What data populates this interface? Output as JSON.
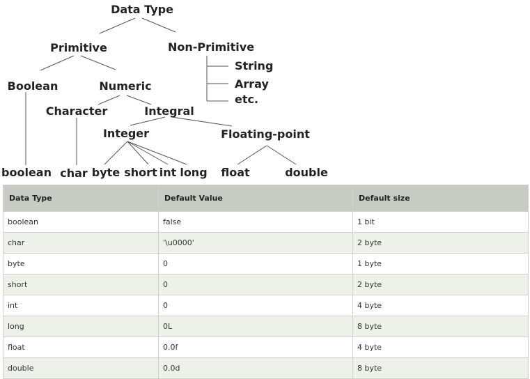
{
  "tree": {
    "root": "Data Type",
    "primitive": "Primitive",
    "non_primitive": "Non-Primitive",
    "non_primitive_items": [
      "String",
      "Array",
      "etc."
    ],
    "boolean_group": "Boolean",
    "numeric_group": "Numeric",
    "character_group": "Character",
    "integral_group": "Integral",
    "integer_group": "Integer",
    "floating_group": "Floating-point",
    "leaves": [
      "boolean",
      "char",
      "byte",
      "short",
      "int",
      "long",
      "float",
      "double"
    ]
  },
  "table": {
    "headers": [
      "Data Type",
      "Default Value",
      "Default size"
    ],
    "rows": [
      [
        "boolean",
        "false",
        "1 bit"
      ],
      [
        "char",
        "'\\u0000'",
        "2 byte"
      ],
      [
        "byte",
        "0",
        "1 byte"
      ],
      [
        "short",
        "0",
        "2 byte"
      ],
      [
        "int",
        "0",
        "4 byte"
      ],
      [
        "long",
        "0L",
        "8 byte"
      ],
      [
        "float",
        "0.0f",
        "4 byte"
      ],
      [
        "double",
        "0.0d",
        "8 byte"
      ]
    ]
  }
}
